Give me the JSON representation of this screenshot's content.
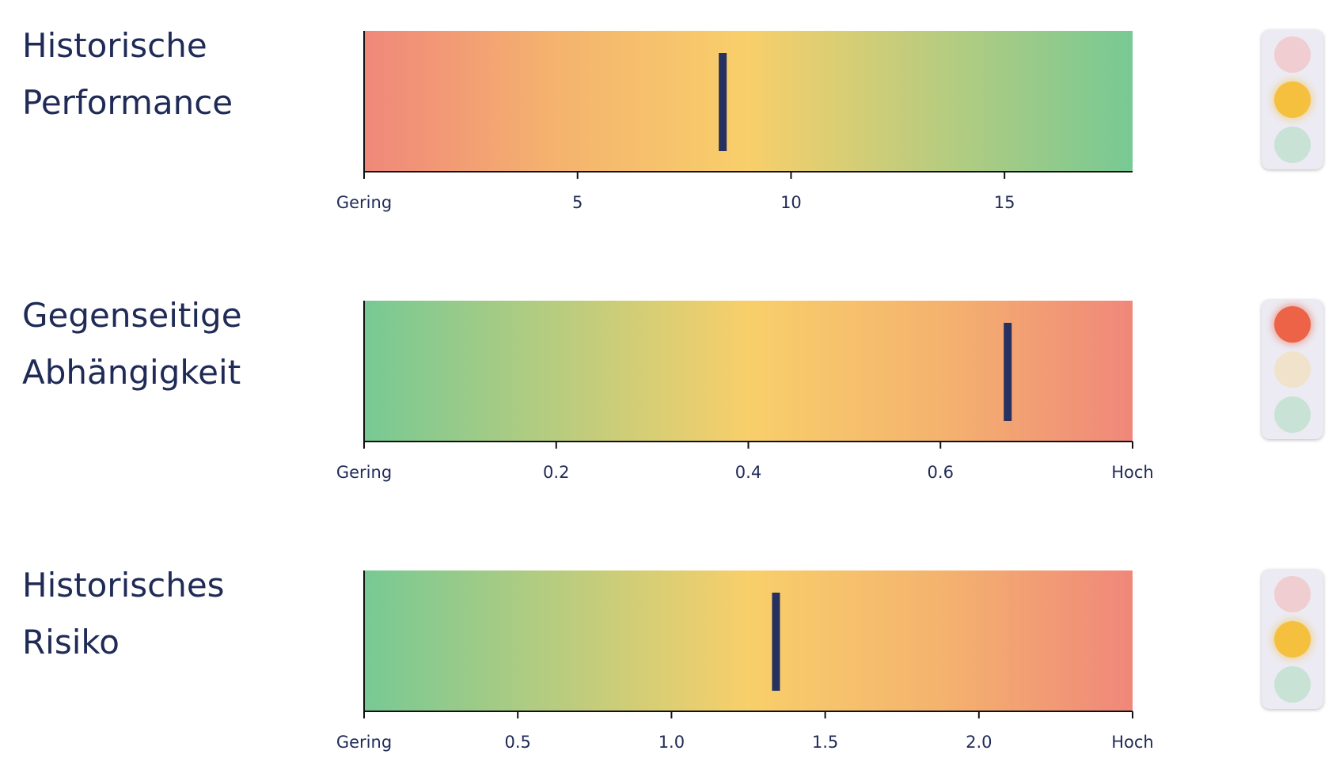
{
  "chart_data": [
    {
      "type": "bullet",
      "title_lines": [
        "Historische",
        "Performance"
      ],
      "range": [
        0,
        18
      ],
      "value": 8.4,
      "gradient": "red-to-green",
      "ticks": [
        {
          "value": 0,
          "label": "Gering"
        },
        {
          "value": 5,
          "label": "5"
        },
        {
          "value": 10,
          "label": "10"
        },
        {
          "value": 15,
          "label": "15"
        }
      ],
      "traffic_light": "yellow"
    },
    {
      "type": "bullet",
      "title_lines": [
        "Gegenseitige",
        "Abhängigkeit"
      ],
      "range": [
        0,
        0.8
      ],
      "value": 0.67,
      "gradient": "green-to-red",
      "ticks": [
        {
          "value": 0,
          "label": "Gering"
        },
        {
          "value": 0.2,
          "label": "0.2"
        },
        {
          "value": 0.4,
          "label": "0.4"
        },
        {
          "value": 0.6,
          "label": "0.6"
        },
        {
          "value": 0.8,
          "label": "Hoch"
        }
      ],
      "traffic_light": "red"
    },
    {
      "type": "bullet",
      "title_lines": [
        "Historisches",
        "Risiko"
      ],
      "range": [
        0,
        2.5
      ],
      "value": 1.34,
      "gradient": "green-to-red",
      "ticks": [
        {
          "value": 0,
          "label": "Gering"
        },
        {
          "value": 0.5,
          "label": "0.5"
        },
        {
          "value": 1.0,
          "label": "1.0"
        },
        {
          "value": 1.5,
          "label": "1.5"
        },
        {
          "value": 2.0,
          "label": "2.0"
        },
        {
          "value": 2.5,
          "label": "Hoch"
        }
      ],
      "traffic_light": "yellow"
    }
  ],
  "colors": {
    "red": "#f0877a",
    "orange": "#f4b36e",
    "yellow": "#f8cf6a",
    "green": "#77c994",
    "marker": "#263160",
    "axis": "#111111",
    "lamp_red_on": "#ec6347",
    "lamp_red_off": "#f0cdd0",
    "lamp_yellow_on": "#f4c03e",
    "lamp_yellow_off": "#f1e2cc",
    "lamp_green_off": "#c8e2d6"
  }
}
